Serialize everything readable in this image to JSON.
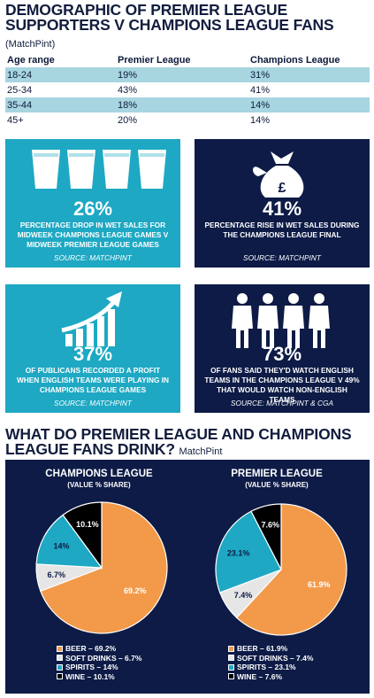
{
  "title": "DEMOGRAPHIC OF PREMIER LEAGUE SUPPORTERS V CHAMPIONS LEAGUE FANS",
  "source": "(MatchPint)",
  "table": {
    "headers": [
      "Age range",
      "Premier League",
      "Champions League"
    ],
    "rows": [
      [
        "18-24",
        "19%",
        "31%"
      ],
      [
        "25-34",
        "43%",
        "41%"
      ],
      [
        "35-44",
        "18%",
        "14%"
      ],
      [
        "45+",
        "20%",
        "14%"
      ]
    ]
  },
  "stats": [
    {
      "value": "26%",
      "text": "PERCENTAGE DROP IN WET SALES FOR MIDWEEK CHAMPIONS LEAGUE GAMES V MIDWEEK PREMIER LEAGUE GAMES",
      "source": "SOURCE: MATCHPINT",
      "icon": "pint-glasses-icon",
      "color": "#1ea8c3"
    },
    {
      "value": "41%",
      "text": "PERCENTAGE RISE IN WET SALES DURING THE CHAMPIONS LEAGUE FINAL",
      "source": "SOURCE: MATCHPINT",
      "icon": "money-bag-icon",
      "color": "#0d1b46"
    },
    {
      "value": "37%",
      "text": "OF PUBLICANS RECORDED A PROFIT WHEN ENGLISH TEAMS WERE PLAYING IN CHAMPIONS LEAGUE GAMES",
      "source": "SOURCE: MATCHPINT",
      "icon": "growth-chart-icon",
      "color": "#1ea8c3"
    },
    {
      "value": "73%",
      "text": "OF FANS SAID THEY'D WATCH ENGLISH TEAMS IN THE CHAMPIONS LEAGUE V 49% THAT WOULD WATCH NON-ENGLISH TEAMS",
      "source": "SOURCE: MATCHPINT & CGA",
      "icon": "people-icon",
      "color": "#0d1b46"
    }
  ],
  "section2": {
    "title": "WHAT DO PREMIER LEAGUE AND CHAMPIONS LEAGUE FANS DRINK?",
    "source": "MatchPint"
  },
  "colors": {
    "beer": "#f29a4a",
    "soft": "#e6e6e6",
    "spirits": "#1ea8c3",
    "wine": "#000000"
  },
  "chart_data": [
    {
      "type": "pie",
      "title": "CHAMPIONS LEAGUE",
      "subtitle": "(VALUE % SHARE)",
      "categories": [
        "BEER",
        "SOFT DRINKS",
        "SPIRITS",
        "WINE"
      ],
      "values": [
        69.2,
        6.7,
        14,
        10.1
      ],
      "slice_labels": [
        "69.2%",
        "6.7%",
        "14%",
        "10.1%"
      ],
      "legend": [
        "BEER – 69.2%",
        "SOFT DRINKS – 6.7%",
        "SPIRITS – 14%",
        "WINE – 10.1%"
      ]
    },
    {
      "type": "pie",
      "title": "PREMIER LEAGUE",
      "subtitle": "(VALUE % SHARE)",
      "categories": [
        "BEER",
        "SOFT DRINKS",
        "SPIRITS",
        "WINE"
      ],
      "values": [
        61.9,
        7.4,
        23.1,
        7.6
      ],
      "slice_labels": [
        "61.9%",
        "7.4%",
        "23.1%",
        "7.6%"
      ],
      "legend": [
        "BEER – 61.9%",
        "SOFT DRINKS – 7.4%",
        "SPIRITS – 23.1%",
        "WINE – 7.6%"
      ]
    }
  ]
}
